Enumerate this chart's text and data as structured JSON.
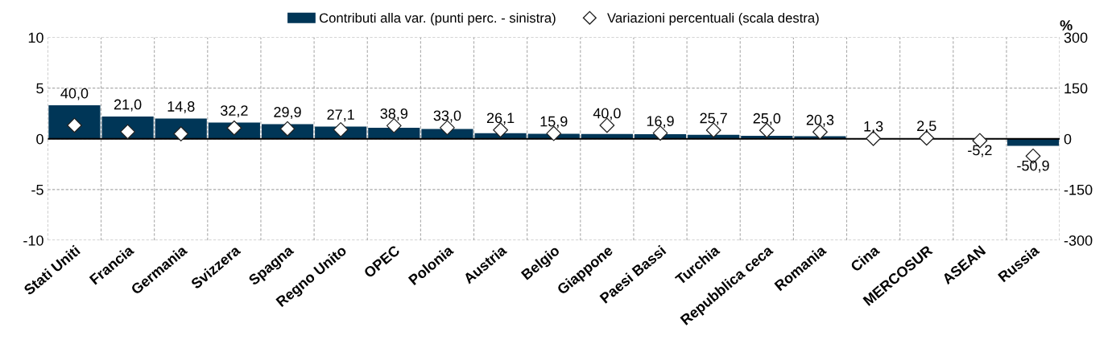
{
  "chart_data": {
    "type": "bar",
    "categories": [
      "Stati Uniti",
      "Francia",
      "Germania",
      "Svizzera",
      "Spagna",
      "Regno Unito",
      "OPEC",
      "Polonia",
      "Austria",
      "Belgio",
      "Giappone",
      "Paesi Bassi",
      "Turchia",
      "Repubblica ceca",
      "Romania",
      "Cina",
      "MERCOSUR",
      "ASEAN",
      "Russia"
    ],
    "series": [
      {
        "name": "Contributi alla var. (punti perc. - sinistra)",
        "color": "#003657",
        "values": [
          3.3,
          2.2,
          2.0,
          1.6,
          1.45,
          1.2,
          1.1,
          0.97,
          0.55,
          0.5,
          0.47,
          0.45,
          0.4,
          0.3,
          0.25,
          0.0,
          0.0,
          0.0,
          -0.7
        ]
      },
      {
        "name": "Variazioni percentuali (scala destra)",
        "type": "scatter",
        "axis": "y2",
        "color": "#ffffff",
        "marker": "diamond",
        "value_labels": [
          "40,0",
          "21,0",
          "14,8",
          "32,2",
          "29,9",
          "27,1",
          "38,9",
          "33,0",
          "26,1",
          "15,9",
          "40,0",
          "16,9",
          "25,7",
          "25,0",
          "20,3",
          "1,3",
          "2,5",
          "-5,2",
          "-50,9"
        ],
        "values": [
          40.0,
          21.0,
          14.8,
          32.2,
          29.9,
          27.1,
          38.9,
          33.0,
          26.1,
          15.9,
          40.0,
          16.9,
          25.7,
          25.0,
          20.3,
          1.3,
          2.5,
          -5.2,
          -50.9
        ]
      }
    ],
    "ylim": [
      -10,
      10
    ],
    "yticks": [
      -10,
      -5,
      0,
      5,
      10
    ],
    "y2lim": [
      -300,
      300
    ],
    "y2ticks": [
      -300,
      -150,
      0,
      150,
      300
    ],
    "y2label": "%",
    "grid": true,
    "legend": "top"
  }
}
